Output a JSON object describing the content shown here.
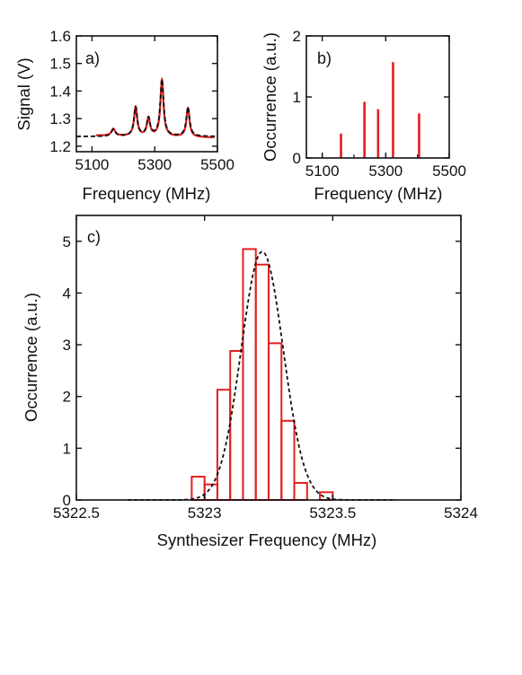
{
  "colors": {
    "data": "#e41e1e",
    "fit": "#111111",
    "axis": "#111111"
  },
  "chart_data": [
    {
      "panel": "a)",
      "type": "line",
      "xlabel": "Frequency (MHz)",
      "ylabel": "Signal (V)",
      "xlim": [
        5050,
        5500
      ],
      "ylim": [
        1.18,
        1.6
      ],
      "xticks": [
        5100,
        5300,
        5500
      ],
      "xtick_labels": [
        "5100",
        "5300",
        "5500"
      ],
      "yticks": [
        1.2,
        1.3,
        1.4,
        1.5,
        1.6
      ],
      "ytick_labels": [
        "1.2",
        "1.3",
        "1.4",
        "1.5",
        "1.6"
      ],
      "baseline": 1.235,
      "peaks": [
        {
          "x": 5168,
          "amp": 0.025,
          "width": 7
        },
        {
          "x": 5239,
          "amp": 0.105,
          "width": 6
        },
        {
          "x": 5280,
          "amp": 0.065,
          "width": 6
        },
        {
          "x": 5323,
          "amp": 0.205,
          "width": 6
        },
        {
          "x": 5406,
          "amp": 0.105,
          "width": 6
        }
      ],
      "series": [
        {
          "style": "solid",
          "color": "#e41e1e"
        },
        {
          "style": "dashed",
          "color": "#111111"
        }
      ]
    },
    {
      "panel": "b)",
      "type": "bar",
      "xlabel": "Frequency (MHz)",
      "ylabel": "Occurrence (a.u.)",
      "xlim": [
        5050,
        5500
      ],
      "ylim": [
        0,
        2
      ],
      "xticks": [
        5100,
        5300,
        5500
      ],
      "xtick_labels": [
        "5100",
        "5300",
        "5500"
      ],
      "yticks": [
        0,
        1,
        2
      ],
      "ytick_labels": [
        "0",
        "1",
        "2"
      ],
      "x": [
        5159,
        5233,
        5276,
        5323,
        5405
      ],
      "values": [
        0.4,
        0.92,
        0.8,
        1.57,
        0.73
      ],
      "extra_ticks": [
        5100,
        5200,
        5300,
        5400
      ],
      "color": "#e41e1e"
    },
    {
      "panel": "c)",
      "type": "bar",
      "xlabel": "Synthesizer Frequency (MHz)",
      "ylabel": "Occurrence (a.u.)",
      "xlim": [
        5322.5,
        5324
      ],
      "ylim": [
        0,
        5.5
      ],
      "xticks": [
        5322.5,
        5323,
        5323.5,
        5324
      ],
      "xtick_labels": [
        "5322.5",
        "5323",
        "5323.5",
        "5324"
      ],
      "yticks": [
        0,
        1,
        2,
        3,
        4,
        5
      ],
      "ytick_labels": [
        "0",
        "1",
        "2",
        "3",
        "4",
        "5"
      ],
      "bin_edges": [
        5322.95,
        5323.0,
        5323.05,
        5323.1,
        5323.15,
        5323.2,
        5323.25,
        5323.3,
        5323.35,
        5323.4,
        5323.45,
        5323.5
      ],
      "values": [
        0.45,
        0.3,
        2.13,
        2.88,
        4.85,
        4.55,
        3.03,
        1.53,
        0.33,
        0.0,
        0.15
      ],
      "fit": {
        "type": "gaussian",
        "center": 5323.225,
        "amplitude": 4.8,
        "sigma": 0.082,
        "style": "dashed",
        "color": "#111111"
      },
      "color": "#e41e1e"
    }
  ]
}
